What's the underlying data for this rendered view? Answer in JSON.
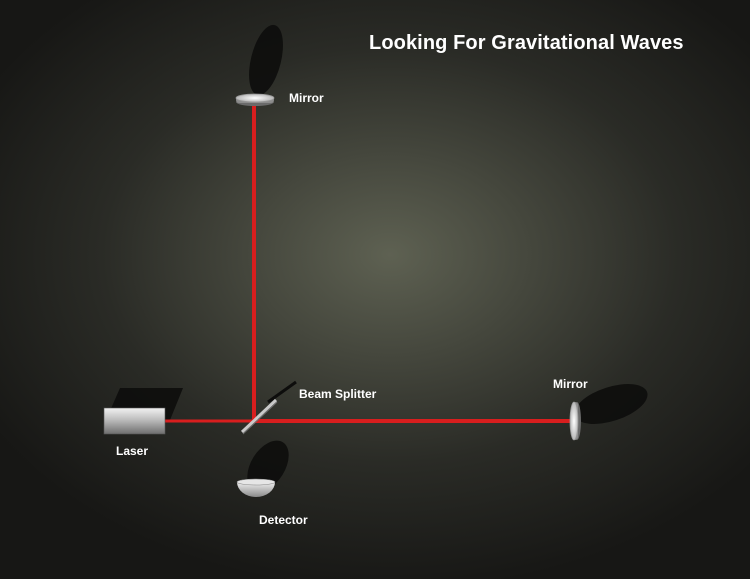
{
  "title": "Looking For Gravitational Waves",
  "labels": {
    "mirror_top": "Mirror",
    "mirror_right": "Mirror",
    "beam_splitter": "Beam Splitter",
    "laser": "Laser",
    "detector": "Detector"
  },
  "colors": {
    "beam": "#d81e1e",
    "background_center": "#5e6152",
    "background_edge": "#171715",
    "text": "#ffffff"
  }
}
